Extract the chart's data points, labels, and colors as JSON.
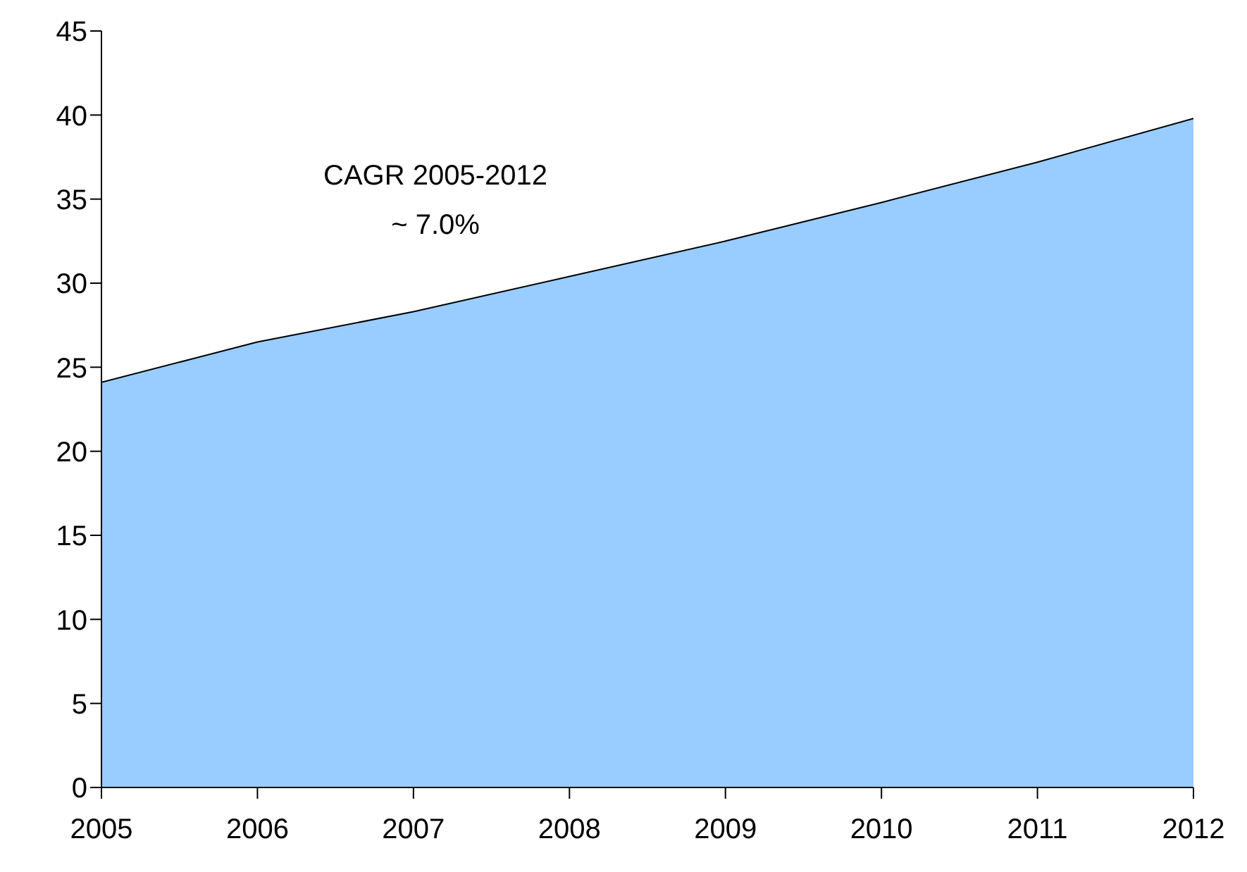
{
  "chart_data": {
    "type": "area",
    "x": [
      2005,
      2006,
      2007,
      2008,
      2009,
      2010,
      2011,
      2012
    ],
    "series": [
      {
        "color": "#99ccff",
        "values": [
          24.1,
          26.5,
          28.3,
          30.4,
          32.5,
          34.8,
          37.2,
          39.8
        ]
      }
    ],
    "xlim": [
      2005,
      2012
    ],
    "xticks": [
      2005,
      2006,
      2007,
      2008,
      2009,
      2010,
      2011,
      2012
    ],
    "ylim": [
      0,
      45
    ],
    "yticks": [
      0,
      5,
      10,
      15,
      20,
      25,
      30,
      35,
      40,
      45
    ],
    "grid": false,
    "legend": false,
    "annotations": [
      "CAGR 2005-2012\n~ 7.0%"
    ]
  }
}
